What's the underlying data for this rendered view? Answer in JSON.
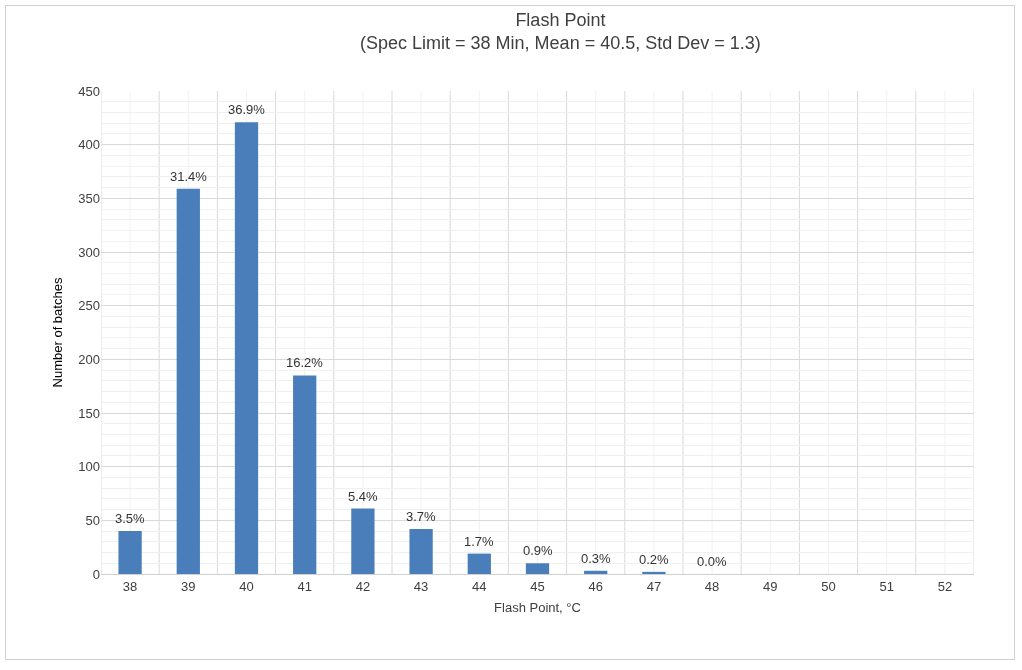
{
  "chart_data": {
    "type": "bar",
    "title": "Flash Point",
    "subtitle": "(Spec Limit = 38 Min, Mean = 40.5, Std Dev = 1.3)",
    "xlabel": "Flash Point, °C",
    "ylabel": "Number of batches",
    "categories": [
      "38",
      "39",
      "40",
      "41",
      "42",
      "43",
      "44",
      "45",
      "46",
      "47",
      "48",
      "49",
      "50",
      "51",
      "52"
    ],
    "values": [
      40,
      359,
      421,
      185,
      61,
      42,
      19,
      10,
      3,
      2,
      0,
      0,
      0,
      0,
      0
    ],
    "annotations": [
      {
        "text": "3.5%",
        "x": "38",
        "y": 40
      },
      {
        "text": "31.4%",
        "x": "39",
        "y": 359
      },
      {
        "text": "36.9%",
        "x": "40",
        "y": 421
      },
      {
        "text": "16.2%",
        "x": "41",
        "y": 185
      },
      {
        "text": "5.4%",
        "x": "42",
        "y": 61
      },
      {
        "text": "3.7%",
        "x": "43",
        "y": 42
      },
      {
        "text": "1.7%",
        "x": "44",
        "y": 19
      },
      {
        "text": "0.9%",
        "x": "45",
        "y": 10
      },
      {
        "text": "0.3%",
        "x": "46",
        "y": 3
      },
      {
        "text": "0.2%",
        "x": "47",
        "y": 2
      },
      {
        "text": "0.0%",
        "x": "48",
        "y": 0
      }
    ],
    "color": "#4a7ebb",
    "ylim": [
      0,
      450
    ],
    "yticks": [
      0,
      50,
      100,
      150,
      200,
      250,
      300,
      350,
      400,
      450
    ],
    "grid": true,
    "legend": false
  }
}
